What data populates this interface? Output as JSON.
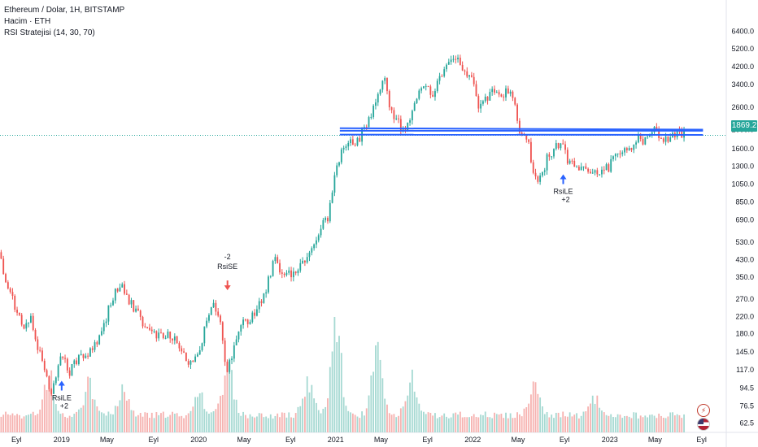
{
  "legend": {
    "symbol_line": "Ethereum / Dolar, 1H, BITSTAMP",
    "volume_line": "Hacim · ETH",
    "strategy_line": "RSI Stratejisi (14, 30, 70)"
  },
  "last_price": "1869.2",
  "colors": {
    "up": "#26a69a",
    "down": "#ef5350",
    "vol_up": "#a6d9d2",
    "vol_down": "#f6b2b0",
    "trend": "#2962ff",
    "buy": "#2962ff",
    "sell": "#ef5350"
  },
  "chart_data": {
    "type": "candlestick",
    "scale": "log",
    "ylim": [
      56,
      8400
    ],
    "y_ticks": [
      "6400.0",
      "5200.0",
      "4200.0",
      "3400.0",
      "2600.0",
      "2000.0",
      "1600.0",
      "1300.0",
      "1050.0",
      "850.0",
      "690.0",
      "530.0",
      "430.0",
      "350.0",
      "270.0",
      "220.0",
      "180.0",
      "145.0",
      "117.0",
      "94.5",
      "76.5",
      "62.5"
    ],
    "y_tick_values": [
      6400,
      5200,
      4200,
      3400,
      2600,
      2000,
      1600,
      1300,
      1050,
      850,
      690,
      530,
      430,
      350,
      270,
      220,
      180,
      145,
      117,
      94.5,
      76.5,
      62.5
    ],
    "x_ticks": [
      "Eyl",
      "2019",
      "May",
      "Eyl",
      "2020",
      "May",
      "Eyl",
      "2021",
      "May",
      "Eyl",
      "2022",
      "May",
      "Eyl",
      "2023",
      "May",
      "Eyl"
    ],
    "x_range": [
      2018.55,
      2023.85
    ],
    "x_tick_values": [
      2018.67,
      2019.0,
      2019.33,
      2019.67,
      2020.0,
      2020.33,
      2020.67,
      2021.0,
      2021.33,
      2021.67,
      2022.0,
      2022.33,
      2022.67,
      2023.0,
      2023.33,
      2023.67
    ],
    "price_path": [
      [
        2018.55,
        470
      ],
      [
        2018.6,
        300
      ],
      [
        2018.67,
        245
      ],
      [
        2018.72,
        200
      ],
      [
        2018.78,
        210
      ],
      [
        2018.82,
        160
      ],
      [
        2018.88,
        110
      ],
      [
        2018.92,
        90
      ],
      [
        2019.0,
        145
      ],
      [
        2019.05,
        110
      ],
      [
        2019.12,
        135
      ],
      [
        2019.2,
        140
      ],
      [
        2019.28,
        170
      ],
      [
        2019.35,
        250
      ],
      [
        2019.4,
        300
      ],
      [
        2019.45,
        310
      ],
      [
        2019.5,
        260
      ],
      [
        2019.55,
        230
      ],
      [
        2019.6,
        200
      ],
      [
        2019.67,
        180
      ],
      [
        2019.72,
        175
      ],
      [
        2019.8,
        180
      ],
      [
        2019.85,
        150
      ],
      [
        2019.92,
        130
      ],
      [
        2020.0,
        140
      ],
      [
        2020.05,
        200
      ],
      [
        2020.1,
        265
      ],
      [
        2020.15,
        225
      ],
      [
        2020.2,
        110
      ],
      [
        2020.25,
        140
      ],
      [
        2020.3,
        200
      ],
      [
        2020.35,
        210
      ],
      [
        2020.42,
        235
      ],
      [
        2020.5,
        320
      ],
      [
        2020.55,
        430
      ],
      [
        2020.62,
        350
      ],
      [
        2020.7,
        380
      ],
      [
        2020.8,
        450
      ],
      [
        2020.88,
        600
      ],
      [
        2020.95,
        730
      ],
      [
        2021.0,
        1300
      ],
      [
        2021.05,
        1600
      ],
      [
        2021.1,
        1800
      ],
      [
        2021.15,
        1700
      ],
      [
        2021.22,
        2100
      ],
      [
        2021.3,
        2800
      ],
      [
        2021.35,
        4000
      ],
      [
        2021.4,
        2500
      ],
      [
        2021.45,
        2300
      ],
      [
        2021.5,
        1900
      ],
      [
        2021.55,
        2300
      ],
      [
        2021.6,
        3200
      ],
      [
        2021.65,
        3300
      ],
      [
        2021.7,
        3000
      ],
      [
        2021.75,
        3600
      ],
      [
        2021.8,
        4100
      ],
      [
        2021.85,
        4600
      ],
      [
        2021.9,
        4500
      ],
      [
        2021.95,
        3900
      ],
      [
        2022.0,
        3500
      ],
      [
        2022.05,
        2500
      ],
      [
        2022.1,
        2900
      ],
      [
        2022.15,
        3100
      ],
      [
        2022.2,
        2900
      ],
      [
        2022.25,
        3300
      ],
      [
        2022.3,
        2800
      ],
      [
        2022.35,
        1900
      ],
      [
        2022.4,
        1800
      ],
      [
        2022.45,
        1100
      ],
      [
        2022.5,
        1100
      ],
      [
        2022.55,
        1500
      ],
      [
        2022.6,
        1600
      ],
      [
        2022.65,
        1800
      ],
      [
        2022.7,
        1350
      ],
      [
        2022.75,
        1300
      ],
      [
        2022.8,
        1300
      ],
      [
        2022.85,
        1200
      ],
      [
        2022.9,
        1200
      ],
      [
        2022.95,
        1250
      ],
      [
        2023.0,
        1300
      ],
      [
        2023.05,
        1550
      ],
      [
        2023.1,
        1600
      ],
      [
        2023.15,
        1650
      ],
      [
        2023.2,
        1800
      ],
      [
        2023.25,
        1750
      ],
      [
        2023.28,
        1900
      ],
      [
        2023.32,
        2000
      ],
      [
        2023.36,
        1850
      ],
      [
        2023.4,
        1800
      ],
      [
        2023.45,
        1850
      ],
      [
        2023.5,
        1900
      ],
      [
        2023.55,
        1869
      ]
    ],
    "trendlines": [
      {
        "from": [
          2021.03,
          1975
        ],
        "to": [
          2023.68,
          1975
        ]
      },
      {
        "from": [
          2021.03,
          1885
        ],
        "to": [
          2023.68,
          1880
        ]
      },
      {
        "from": [
          2021.03,
          2035
        ],
        "to": [
          2023.68,
          2000
        ]
      }
    ],
    "annotations": [
      {
        "x": 2019.0,
        "price": 103,
        "side": "below",
        "label1": "RsiLE",
        "label2": "+2",
        "dir": "up"
      },
      {
        "x": 2020.21,
        "price": 300,
        "side": "above",
        "label1": "RsiSE",
        "label2": "-2",
        "dir": "down"
      },
      {
        "x": 2022.66,
        "price": 1180,
        "side": "below",
        "label1": "RsiLE",
        "label2": "+2",
        "dir": "up"
      }
    ],
    "volume_peaks": [
      [
        2018.9,
        0.45
      ],
      [
        2019.2,
        0.35
      ],
      [
        2019.45,
        0.3
      ],
      [
        2020.0,
        0.25
      ],
      [
        2020.21,
        0.6
      ],
      [
        2020.8,
        0.4
      ],
      [
        2021.0,
        1.0
      ],
      [
        2021.3,
        0.7
      ],
      [
        2021.55,
        0.45
      ],
      [
        2022.45,
        0.35
      ],
      [
        2022.9,
        0.2
      ]
    ]
  }
}
